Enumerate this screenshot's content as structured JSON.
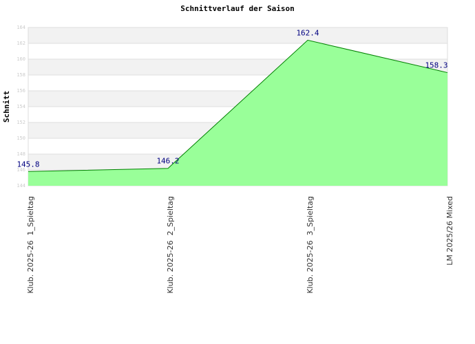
{
  "chart_data": {
    "type": "area",
    "title": "Schnittverlauf der Saison",
    "y_label": "Schnitt",
    "categories": [
      "Klub. 2025-26  1_Spieltag",
      "Klub. 2025-26  2_Spieltag",
      "Klub. 2025-26  3_Spieltag",
      "LM 2025/26 Mixed"
    ],
    "values": [
      145.8,
      146.2,
      162.4,
      158.3
    ],
    "color": "#99ff99",
    "line_color": "#008000",
    "label_color": "#000080",
    "ylim": [
      144,
      164
    ],
    "yticks": [
      144,
      146,
      148,
      150,
      152,
      154,
      156,
      158,
      160,
      162,
      164
    ],
    "grid": true
  }
}
